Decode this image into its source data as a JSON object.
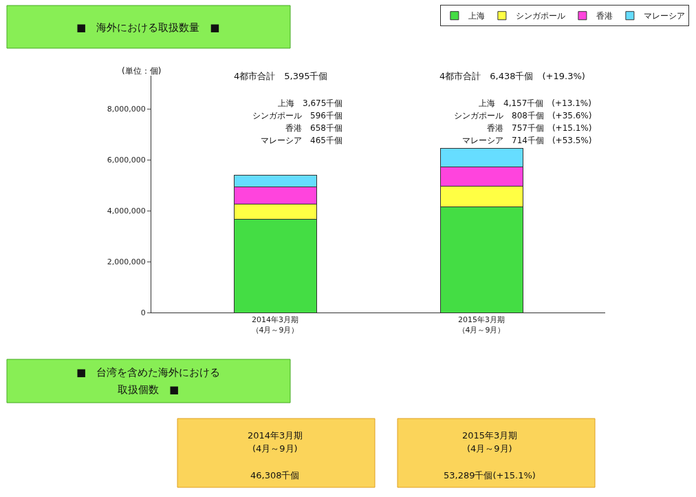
{
  "chart_data": {
    "type": "bar",
    "stacked": true,
    "categories": [
      "2014年3月期（4月～9月）",
      "2015年3月期（4月～9月）"
    ],
    "series": [
      {
        "name": "上海",
        "color": "#44dd44",
        "values": [
          3675000,
          4157000
        ]
      },
      {
        "name": "シンガポール",
        "color": "#ffff44",
        "values": [
          596000,
          808000
        ]
      },
      {
        "name": "香港",
        "color": "#ff44dd",
        "values": [
          658000,
          757000
        ]
      },
      {
        "name": "マレーシア",
        "color": "#66ddff",
        "values": [
          465000,
          714000
        ]
      }
    ],
    "ylim": [
      0,
      9300000
    ],
    "yticks": [
      0,
      {
        "value": 2000000,
        "label": "2,000,000"
      },
      {
        "value": 4000000,
        "label": "4,000,000"
      },
      {
        "value": 6000000,
        "label": "6,000,000"
      },
      {
        "value": 8000000,
        "label": "8,000,000"
      }
    ],
    "legend": "top right",
    "annotations": [
      "(単位：個)",
      "4都市合計　5,395千個",
      "上海　3,675千個",
      "シンガポール　596千個",
      "香港　658千個",
      "マレーシア　465千個",
      "4都市合計　6,438千個　(+19.3%)",
      "上海　4,157千個　(+13.1%)",
      "シンガポール　808千個　(+35.6%)",
      "香港　757千個　(+15.1%)",
      "マレーシア　714千個　(+53.5%)",
      "■　海外における取扱数量　■",
      "■　台湾を含めた海外における",
      "取扱個数　■",
      "2014年3月期",
      "(4月～9月)",
      "46,308千個",
      "2015年3月期",
      "(4月～9月)",
      "53,289千個(+15.1%)"
    ]
  }
}
